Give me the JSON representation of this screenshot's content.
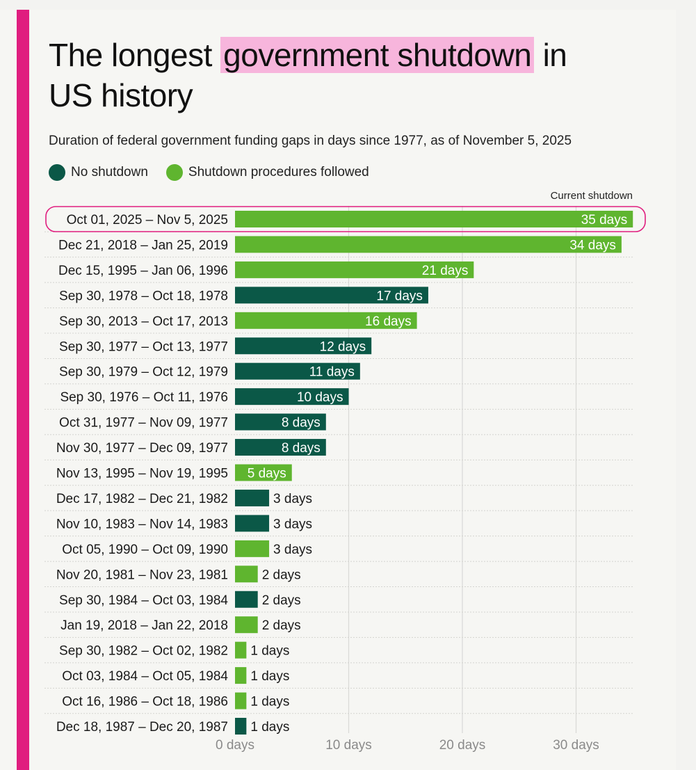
{
  "title": {
    "before": "The longest ",
    "highlight": "government shutdown",
    "after": " in",
    "line2": "US history"
  },
  "subtitle": "Duration of federal government funding gaps in days since 1977, as of November 5, 2025",
  "legend": {
    "no_shutdown": "No shutdown",
    "shutdown": "Shutdown procedures followed"
  },
  "annotation": "Current shutdown",
  "colors": {
    "no_shutdown": "#0b5847",
    "shutdown": "#5fb52f",
    "accent": "#e01e7f",
    "highlight": "#f7b5dc"
  },
  "chart_data": {
    "type": "bar",
    "orientation": "horizontal",
    "title": "The longest government shutdown in US history",
    "subtitle": "Duration of federal government funding gaps in days since 1977, as of November 5, 2025",
    "xlim": [
      0,
      35
    ],
    "xticks": [
      0,
      10,
      20,
      30
    ],
    "xtick_labels": [
      "0 days",
      "10 days",
      "20 days",
      "30 days"
    ],
    "grid": true,
    "legend_placement": "top-left",
    "unit_suffix": " days",
    "bars": [
      {
        "label": "Oct 01, 2025 – Nov 5, 2025",
        "value": 35,
        "category": "shutdown",
        "highlight": true
      },
      {
        "label": "Dec 21, 2018 – Jan 25, 2019",
        "value": 34,
        "category": "shutdown"
      },
      {
        "label": "Dec 15, 1995 – Jan 06, 1996",
        "value": 21,
        "category": "shutdown"
      },
      {
        "label": "Sep 30, 1978 – Oct 18, 1978",
        "value": 17,
        "category": "no_shutdown"
      },
      {
        "label": "Sep 30, 2013 – Oct 17, 2013",
        "value": 16,
        "category": "shutdown"
      },
      {
        "label": "Sep 30, 1977 – Oct 13, 1977",
        "value": 12,
        "category": "no_shutdown"
      },
      {
        "label": "Sep 30, 1979 – Oct 12, 1979",
        "value": 11,
        "category": "no_shutdown"
      },
      {
        "label": "Sep 30, 1976 – Oct 11, 1976",
        "value": 10,
        "category": "no_shutdown"
      },
      {
        "label": "Oct 31, 1977 – Nov 09, 1977",
        "value": 8,
        "category": "no_shutdown"
      },
      {
        "label": "Nov 30, 1977 – Dec 09, 1977",
        "value": 8,
        "category": "no_shutdown"
      },
      {
        "label": "Nov 13, 1995 – Nov 19, 1995",
        "value": 5,
        "category": "shutdown"
      },
      {
        "label": "Dec 17, 1982 – Dec 21, 1982",
        "value": 3,
        "category": "no_shutdown"
      },
      {
        "label": "Nov 10, 1983 – Nov 14, 1983",
        "value": 3,
        "category": "no_shutdown"
      },
      {
        "label": "Oct 05, 1990 – Oct 09, 1990",
        "value": 3,
        "category": "shutdown"
      },
      {
        "label": "Nov 20, 1981 – Nov 23, 1981",
        "value": 2,
        "category": "shutdown"
      },
      {
        "label": "Sep 30, 1984 – Oct 03, 1984",
        "value": 2,
        "category": "no_shutdown"
      },
      {
        "label": "Jan 19, 2018 – Jan 22, 2018",
        "value": 2,
        "category": "shutdown"
      },
      {
        "label": "Sep 30, 1982 – Oct 02, 1982",
        "value": 1,
        "category": "shutdown"
      },
      {
        "label": "Oct 03, 1984 – Oct 05, 1984",
        "value": 1,
        "category": "shutdown"
      },
      {
        "label": "Oct 16, 1986 – Oct 18, 1986",
        "value": 1,
        "category": "shutdown"
      },
      {
        "label": "Dec 18, 1987 – Dec 20, 1987",
        "value": 1,
        "category": "no_shutdown"
      }
    ]
  }
}
